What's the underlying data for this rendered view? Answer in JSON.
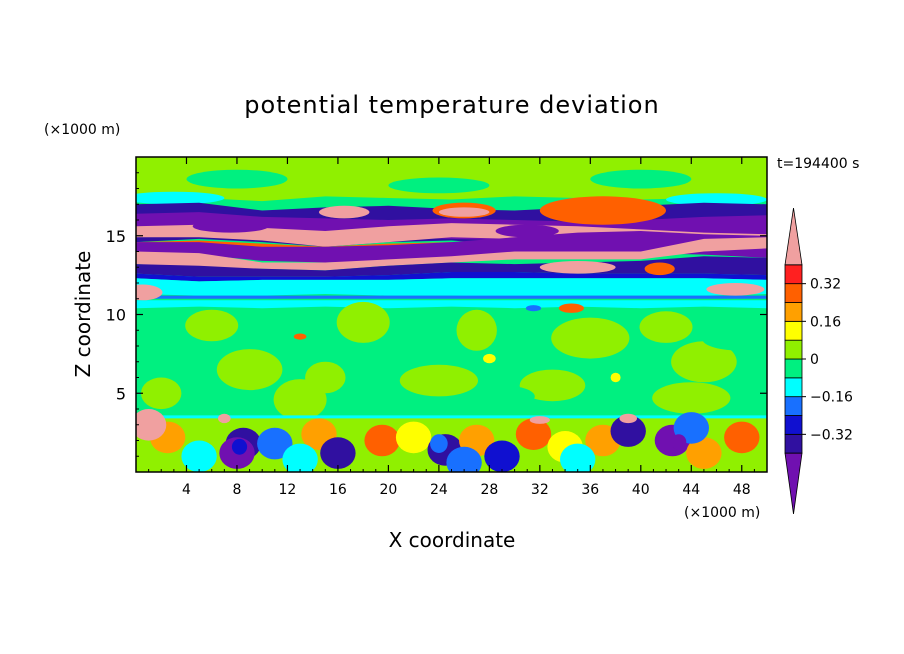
{
  "chart_data": {
    "type": "heatmap",
    "title": "potential temperature deviation",
    "xlabel": "X coordinate",
    "ylabel": "Z coordinate",
    "x_unit": "(×1000 m)",
    "y_unit": "(×1000 m)",
    "time_label": "t=194400 s",
    "xlim": [
      0,
      50
    ],
    "ylim": [
      0,
      20
    ],
    "x_ticks": [
      4,
      8,
      12,
      16,
      20,
      24,
      28,
      32,
      36,
      40,
      44,
      48
    ],
    "y_ticks": [
      5,
      10,
      15
    ],
    "colorbar": {
      "levels": [
        -0.48,
        -0.4,
        -0.32,
        -0.24,
        -0.16,
        -0.08,
        0,
        0.08,
        0.16,
        0.24,
        0.32,
        0.4
      ],
      "labels": [
        "0.32",
        "0.16",
        "0",
        "−0.16",
        "−0.32"
      ],
      "label_values": [
        0.32,
        0.16,
        0,
        -0.16,
        -0.32
      ],
      "colors": [
        "#7010b0",
        "#3010a0",
        "#1010d0",
        "#1870ff",
        "#00ffff",
        "#00f080",
        "#90f000",
        "#ffff00",
        "#ffa000",
        "#ff6000",
        "#ff2020",
        "#f0a0a0"
      ],
      "extend": "both"
    }
  }
}
